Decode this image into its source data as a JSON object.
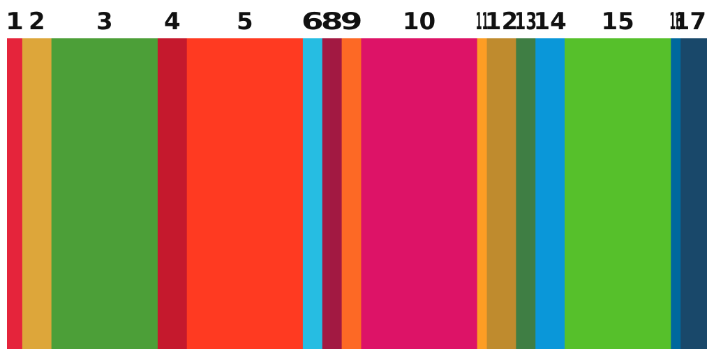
{
  "chart_data": {
    "type": "bar",
    "orientation": "stacked-horizontal-strip",
    "categories": [
      "1",
      "2",
      "3",
      "4",
      "5",
      "6",
      "8",
      "9",
      "10",
      "11",
      "12",
      "13",
      "14",
      "15",
      "16",
      "17"
    ],
    "values": [
      22,
      42,
      153,
      42,
      167,
      28,
      28,
      28,
      167,
      14,
      42,
      28,
      42,
      153,
      14,
      38
    ],
    "colors": [
      "#E5243B",
      "#DDA63A",
      "#4C9F38",
      "#C5192D",
      "#FF3A21",
      "#26BDE2",
      "#A21942",
      "#FD6925",
      "#DD1367",
      "#FD9D24",
      "#BF8B2E",
      "#3F7E44",
      "#0A97D9",
      "#56C02B",
      "#00689D",
      "#19486A"
    ],
    "grid": false,
    "legend": "none"
  }
}
